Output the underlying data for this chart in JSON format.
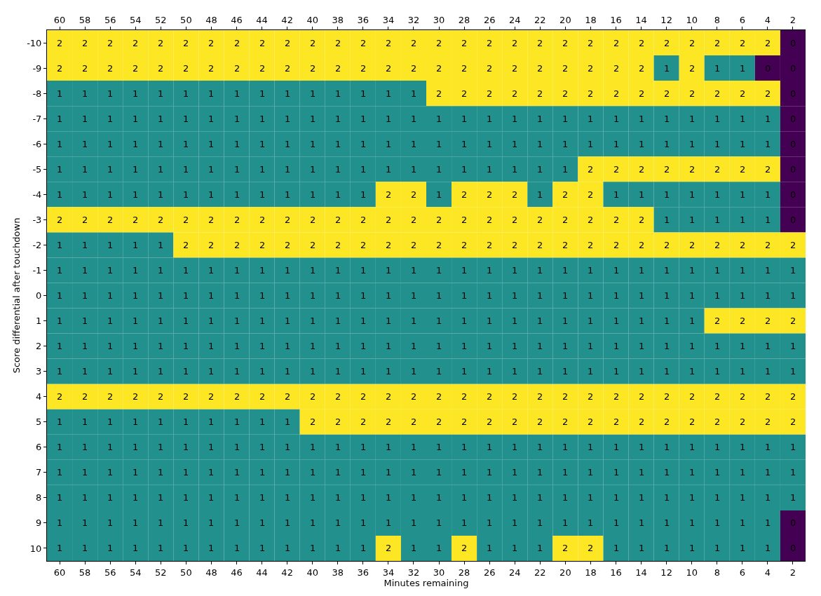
{
  "chart_data": {
    "type": "heatmap",
    "xlabel": "Minutes remaining",
    "ylabel": "Score differential after touchdown",
    "categories": [
      "60",
      "58",
      "56",
      "54",
      "52",
      "50",
      "48",
      "46",
      "44",
      "42",
      "40",
      "38",
      "36",
      "34",
      "32",
      "30",
      "28",
      "26",
      "24",
      "22",
      "20",
      "18",
      "16",
      "14",
      "12",
      "10",
      "8",
      "6",
      "4",
      "2"
    ],
    "y_categories": [
      "-10",
      "-9",
      "-8",
      "-7",
      "-6",
      "-5",
      "-4",
      "-3",
      "-2",
      "-1",
      "0",
      "1",
      "2",
      "3",
      "4",
      "5",
      "6",
      "7",
      "8",
      "9",
      "10"
    ],
    "cells": [
      [
        2,
        2,
        2,
        2,
        2,
        2,
        2,
        2,
        2,
        2,
        2,
        2,
        2,
        2,
        2,
        2,
        2,
        2,
        2,
        2,
        2,
        2,
        2,
        2,
        2,
        2,
        2,
        2,
        2,
        0
      ],
      [
        2,
        2,
        2,
        2,
        2,
        2,
        2,
        2,
        2,
        2,
        2,
        2,
        2,
        2,
        2,
        2,
        2,
        2,
        2,
        2,
        2,
        2,
        2,
        2,
        1,
        2,
        1,
        1,
        0,
        0
      ],
      [
        1,
        1,
        1,
        1,
        1,
        1,
        1,
        1,
        1,
        1,
        1,
        1,
        1,
        1,
        1,
        2,
        2,
        2,
        2,
        2,
        2,
        2,
        2,
        2,
        2,
        2,
        2,
        2,
        2,
        0
      ],
      [
        1,
        1,
        1,
        1,
        1,
        1,
        1,
        1,
        1,
        1,
        1,
        1,
        1,
        1,
        1,
        1,
        1,
        1,
        1,
        1,
        1,
        1,
        1,
        1,
        1,
        1,
        1,
        1,
        1,
        0
      ],
      [
        1,
        1,
        1,
        1,
        1,
        1,
        1,
        1,
        1,
        1,
        1,
        1,
        1,
        1,
        1,
        1,
        1,
        1,
        1,
        1,
        1,
        1,
        1,
        1,
        1,
        1,
        1,
        1,
        1,
        0
      ],
      [
        1,
        1,
        1,
        1,
        1,
        1,
        1,
        1,
        1,
        1,
        1,
        1,
        1,
        1,
        1,
        1,
        1,
        1,
        1,
        1,
        1,
        2,
        2,
        2,
        2,
        2,
        2,
        2,
        2,
        0
      ],
      [
        1,
        1,
        1,
        1,
        1,
        1,
        1,
        1,
        1,
        1,
        1,
        1,
        1,
        2,
        2,
        1,
        2,
        2,
        2,
        1,
        2,
        2,
        1,
        1,
        1,
        1,
        1,
        1,
        1,
        0
      ],
      [
        2,
        2,
        2,
        2,
        2,
        2,
        2,
        2,
        2,
        2,
        2,
        2,
        2,
        2,
        2,
        2,
        2,
        2,
        2,
        2,
        2,
        2,
        2,
        2,
        1,
        1,
        1,
        1,
        1,
        0
      ],
      [
        1,
        1,
        1,
        1,
        1,
        2,
        2,
        2,
        2,
        2,
        2,
        2,
        2,
        2,
        2,
        2,
        2,
        2,
        2,
        2,
        2,
        2,
        2,
        2,
        2,
        2,
        2,
        2,
        2,
        2
      ],
      [
        1,
        1,
        1,
        1,
        1,
        1,
        1,
        1,
        1,
        1,
        1,
        1,
        1,
        1,
        1,
        1,
        1,
        1,
        1,
        1,
        1,
        1,
        1,
        1,
        1,
        1,
        1,
        1,
        1,
        1
      ],
      [
        1,
        1,
        1,
        1,
        1,
        1,
        1,
        1,
        1,
        1,
        1,
        1,
        1,
        1,
        1,
        1,
        1,
        1,
        1,
        1,
        1,
        1,
        1,
        1,
        1,
        1,
        1,
        1,
        1,
        1
      ],
      [
        1,
        1,
        1,
        1,
        1,
        1,
        1,
        1,
        1,
        1,
        1,
        1,
        1,
        1,
        1,
        1,
        1,
        1,
        1,
        1,
        1,
        1,
        1,
        1,
        1,
        1,
        2,
        2,
        2,
        2
      ],
      [
        1,
        1,
        1,
        1,
        1,
        1,
        1,
        1,
        1,
        1,
        1,
        1,
        1,
        1,
        1,
        1,
        1,
        1,
        1,
        1,
        1,
        1,
        1,
        1,
        1,
        1,
        1,
        1,
        1,
        1
      ],
      [
        1,
        1,
        1,
        1,
        1,
        1,
        1,
        1,
        1,
        1,
        1,
        1,
        1,
        1,
        1,
        1,
        1,
        1,
        1,
        1,
        1,
        1,
        1,
        1,
        1,
        1,
        1,
        1,
        1,
        1
      ],
      [
        2,
        2,
        2,
        2,
        2,
        2,
        2,
        2,
        2,
        2,
        2,
        2,
        2,
        2,
        2,
        2,
        2,
        2,
        2,
        2,
        2,
        2,
        2,
        2,
        2,
        2,
        2,
        2,
        2,
        2
      ],
      [
        1,
        1,
        1,
        1,
        1,
        1,
        1,
        1,
        1,
        1,
        2,
        2,
        2,
        2,
        2,
        2,
        2,
        2,
        2,
        2,
        2,
        2,
        2,
        2,
        2,
        2,
        2,
        2,
        2,
        2
      ],
      [
        1,
        1,
        1,
        1,
        1,
        1,
        1,
        1,
        1,
        1,
        1,
        1,
        1,
        1,
        1,
        1,
        1,
        1,
        1,
        1,
        1,
        1,
        1,
        1,
        1,
        1,
        1,
        1,
        1,
        1
      ],
      [
        1,
        1,
        1,
        1,
        1,
        1,
        1,
        1,
        1,
        1,
        1,
        1,
        1,
        1,
        1,
        1,
        1,
        1,
        1,
        1,
        1,
        1,
        1,
        1,
        1,
        1,
        1,
        1,
        1,
        1
      ],
      [
        1,
        1,
        1,
        1,
        1,
        1,
        1,
        1,
        1,
        1,
        1,
        1,
        1,
        1,
        1,
        1,
        1,
        1,
        1,
        1,
        1,
        1,
        1,
        1,
        1,
        1,
        1,
        1,
        1,
        1
      ],
      [
        1,
        1,
        1,
        1,
        1,
        1,
        1,
        1,
        1,
        1,
        1,
        1,
        1,
        1,
        1,
        1,
        1,
        1,
        1,
        1,
        1,
        1,
        1,
        1,
        1,
        1,
        1,
        1,
        1,
        0
      ],
      [
        1,
        1,
        1,
        1,
        1,
        1,
        1,
        1,
        1,
        1,
        1,
        1,
        1,
        2,
        1,
        1,
        2,
        1,
        1,
        1,
        2,
        2,
        1,
        1,
        1,
        1,
        1,
        1,
        1,
        0
      ]
    ],
    "data_labels": true
  }
}
